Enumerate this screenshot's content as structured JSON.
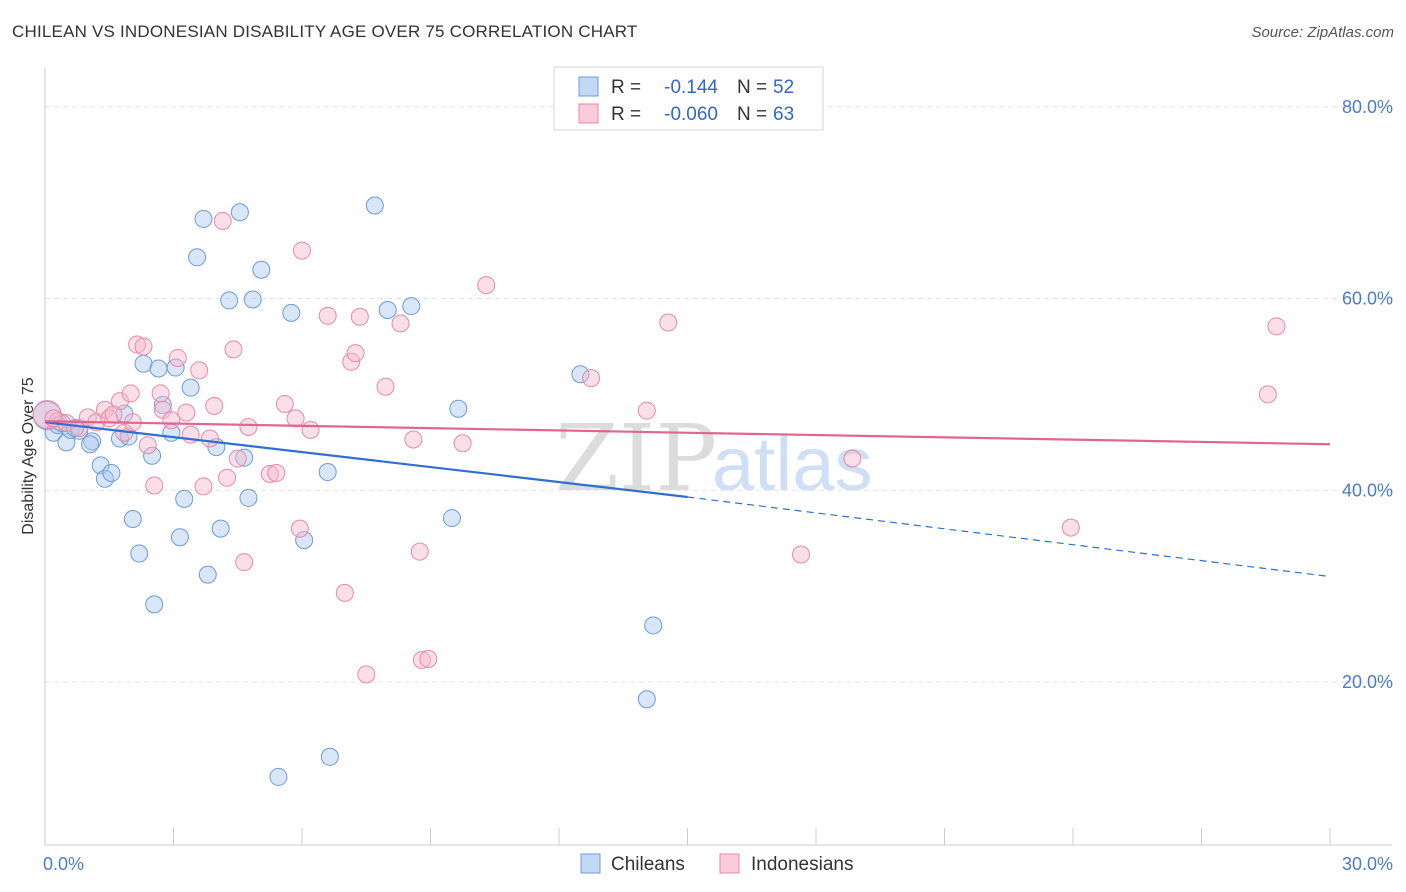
{
  "title": "CHILEAN VS INDONESIAN DISABILITY AGE OVER 75 CORRELATION CHART",
  "source": "Source: ZipAtlas.com",
  "watermark": {
    "zip": "ZIP",
    "atlas": "atlas"
  },
  "colors": {
    "blue_fill": "#a9c8f0",
    "blue_stroke": "#6e9bd8",
    "blue_line": "#2e6fd0",
    "pink_fill": "#f6b8cc",
    "pink_stroke": "#e88aa8",
    "pink_line": "#e06690",
    "grid": "#e3e3e3",
    "tick_text": "#4a7cc7"
  },
  "legend": {
    "rows": [
      {
        "r_label": "R =",
        "r_value": "-0.144",
        "n_label": "N =",
        "n_value": "52",
        "series": "blue"
      },
      {
        "r_label": "R =",
        "r_value": "-0.060",
        "n_label": "N =",
        "n_value": "63",
        "series": "pink"
      }
    ]
  },
  "bottom_legend": [
    {
      "label": "Chileans",
      "series": "blue"
    },
    {
      "label": "Indonesians",
      "series": "pink"
    }
  ],
  "chart_data": {
    "type": "scatter",
    "title": "CHILEAN VS INDONESIAN DISABILITY AGE OVER 75 CORRELATION CHART",
    "xlabel": "",
    "ylabel": "Disability Age Over 75",
    "xlim": [
      0,
      30
    ],
    "ylim": [
      3,
      83
    ],
    "x_tick_labels": [
      {
        "value": 0,
        "label": "0.0%"
      },
      {
        "value": 30,
        "label": "30.0%"
      }
    ],
    "y_tick_labels": [
      {
        "value": 20,
        "label": "20.0%"
      },
      {
        "value": 40,
        "label": "40.0%"
      },
      {
        "value": 60,
        "label": "60.0%"
      },
      {
        "value": 80,
        "label": "80.0%"
      }
    ],
    "grid": true,
    "series": [
      {
        "name": "Chileans",
        "color": "#a9c8f0",
        "points": [
          [
            0.05,
            47.8
          ],
          [
            0.2,
            46.0
          ],
          [
            0.3,
            46.8
          ],
          [
            0.5,
            45.0
          ],
          [
            0.6,
            46.3
          ],
          [
            0.8,
            46.2
          ],
          [
            1.1,
            45.1
          ],
          [
            1.05,
            44.8
          ],
          [
            1.3,
            42.6
          ],
          [
            1.4,
            41.2
          ],
          [
            1.55,
            41.8
          ],
          [
            1.75,
            45.4
          ],
          [
            1.85,
            48.0
          ],
          [
            1.95,
            45.6
          ],
          [
            2.05,
            37.0
          ],
          [
            2.2,
            33.4
          ],
          [
            2.3,
            53.2
          ],
          [
            2.5,
            43.6
          ],
          [
            2.55,
            28.1
          ],
          [
            2.65,
            52.7
          ],
          [
            2.75,
            48.9
          ],
          [
            2.95,
            46.0
          ],
          [
            3.05,
            52.8
          ],
          [
            3.15,
            35.1
          ],
          [
            3.25,
            39.1
          ],
          [
            3.4,
            50.7
          ],
          [
            3.55,
            64.3
          ],
          [
            3.7,
            68.3
          ],
          [
            3.8,
            31.2
          ],
          [
            4.0,
            44.5
          ],
          [
            4.1,
            36.0
          ],
          [
            4.3,
            59.8
          ],
          [
            4.55,
            69.0
          ],
          [
            4.65,
            43.4
          ],
          [
            4.75,
            39.2
          ],
          [
            4.85,
            59.9
          ],
          [
            5.05,
            63.0
          ],
          [
            5.45,
            10.1
          ],
          [
            5.75,
            58.5
          ],
          [
            6.05,
            34.8
          ],
          [
            6.6,
            41.9
          ],
          [
            6.65,
            12.2
          ],
          [
            7.7,
            69.7
          ],
          [
            8.0,
            58.8
          ],
          [
            8.55,
            59.2
          ],
          [
            9.5,
            37.1
          ],
          [
            9.65,
            48.5
          ],
          [
            12.5,
            52.1
          ],
          [
            14.05,
            18.2
          ],
          [
            14.2,
            25.9
          ],
          [
            0.4,
            47.0
          ],
          [
            0.7,
            46.5
          ]
        ]
      },
      {
        "name": "Indonesians",
        "color": "#f6b8cc",
        "points": [
          [
            0.05,
            47.9
          ],
          [
            0.3,
            47.2
          ],
          [
            0.5,
            47.0
          ],
          [
            0.8,
            46.5
          ],
          [
            1.0,
            47.6
          ],
          [
            1.2,
            47.1
          ],
          [
            1.4,
            48.4
          ],
          [
            1.5,
            47.5
          ],
          [
            1.75,
            49.3
          ],
          [
            1.85,
            46.0
          ],
          [
            2.0,
            50.1
          ],
          [
            2.05,
            47.1
          ],
          [
            2.15,
            55.2
          ],
          [
            2.3,
            55.0
          ],
          [
            2.4,
            44.7
          ],
          [
            2.55,
            40.5
          ],
          [
            2.7,
            50.1
          ],
          [
            2.75,
            48.4
          ],
          [
            2.95,
            47.3
          ],
          [
            3.1,
            53.8
          ],
          [
            3.3,
            48.1
          ],
          [
            3.4,
            45.8
          ],
          [
            3.6,
            52.5
          ],
          [
            3.7,
            40.4
          ],
          [
            3.85,
            45.4
          ],
          [
            3.95,
            48.8
          ],
          [
            4.15,
            68.1
          ],
          [
            4.25,
            41.3
          ],
          [
            4.4,
            54.7
          ],
          [
            4.5,
            43.3
          ],
          [
            4.65,
            32.5
          ],
          [
            4.75,
            46.6
          ],
          [
            5.25,
            41.7
          ],
          [
            5.4,
            41.8
          ],
          [
            5.6,
            49.0
          ],
          [
            5.85,
            47.5
          ],
          [
            5.95,
            36.0
          ],
          [
            6.2,
            46.3
          ],
          [
            6.0,
            65.0
          ],
          [
            6.6,
            58.2
          ],
          [
            7.0,
            29.3
          ],
          [
            7.15,
            53.4
          ],
          [
            7.25,
            54.3
          ],
          [
            7.35,
            58.1
          ],
          [
            7.5,
            20.8
          ],
          [
            7.95,
            50.8
          ],
          [
            8.3,
            57.4
          ],
          [
            8.6,
            45.3
          ],
          [
            8.75,
            33.6
          ],
          [
            8.8,
            22.3
          ],
          [
            8.95,
            22.4
          ],
          [
            9.75,
            44.9
          ],
          [
            10.3,
            61.4
          ],
          [
            12.75,
            51.7
          ],
          [
            14.05,
            48.3
          ],
          [
            14.55,
            57.5
          ],
          [
            17.65,
            33.3
          ],
          [
            18.85,
            43.3
          ],
          [
            23.95,
            36.1
          ],
          [
            28.55,
            50.0
          ],
          [
            28.75,
            57.1
          ],
          [
            1.6,
            47.9
          ],
          [
            0.2,
            47.5
          ]
        ]
      }
    ],
    "trend_lines": [
      {
        "series": "Chileans",
        "x": [
          0,
          15
        ],
        "y": [
          47.1,
          39.3
        ],
        "style": "solid"
      },
      {
        "series": "Chileans",
        "x": [
          15,
          30
        ],
        "y": [
          39.3,
          31.0
        ],
        "style": "dashed"
      },
      {
        "series": "Indonesians",
        "x": [
          0,
          30
        ],
        "y": [
          47.2,
          44.8
        ],
        "style": "solid"
      }
    ]
  }
}
